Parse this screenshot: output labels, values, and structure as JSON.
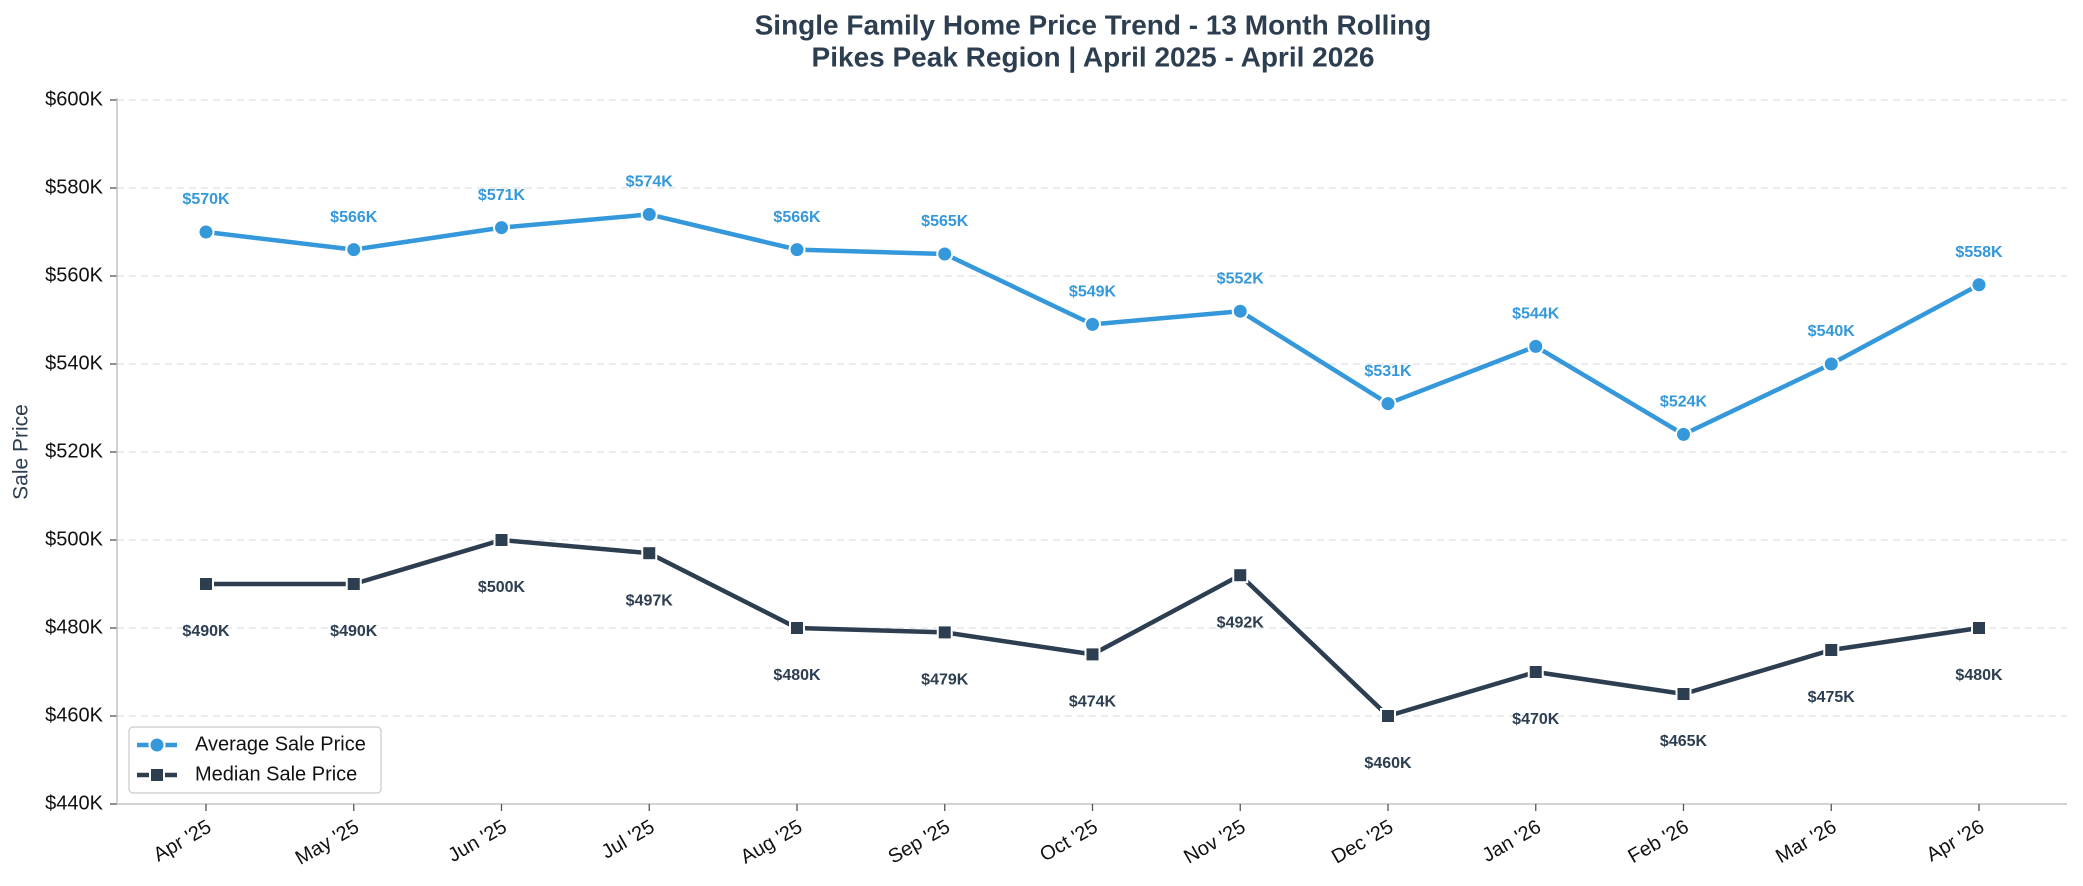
{
  "chart_data": {
    "type": "line",
    "title": "Single Family Home Price Trend - 13 Month Rolling",
    "subtitle": "Pikes Peak Region | April 2025 - April 2026",
    "y_label": "Sale Price",
    "categories": [
      "Apr '25",
      "May '25",
      "Jun '25",
      "Jul '25",
      "Aug '25",
      "Sep '25",
      "Oct '25",
      "Nov '25",
      "Dec '25",
      "Jan '26",
      "Feb '26",
      "Mar '26",
      "Apr '26"
    ],
    "series": [
      {
        "name": "Average Sale Price",
        "color": "#3498db",
        "marker": "circle",
        "label_position": "above",
        "values": [
          570000,
          566000,
          571000,
          574000,
          566000,
          565000,
          549000,
          552000,
          531000,
          544000,
          524000,
          540000,
          558000
        ],
        "value_labels": [
          "$570K",
          "$566K",
          "$571K",
          "$574K",
          "$566K",
          "$565K",
          "$549K",
          "$552K",
          "$531K",
          "$544K",
          "$524K",
          "$540K",
          "$558K"
        ]
      },
      {
        "name": "Median Sale Price",
        "color": "#2c3e50",
        "marker": "square",
        "label_position": "below",
        "values": [
          490000,
          490000,
          500000,
          497000,
          480000,
          479000,
          474000,
          492000,
          460000,
          470000,
          465000,
          475000,
          480000
        ],
        "value_labels": [
          "$490K",
          "$490K",
          "$500K",
          "$497K",
          "$480K",
          "$479K",
          "$474K",
          "$492K",
          "$460K",
          "$470K",
          "$465K",
          "$475K",
          "$480K"
        ]
      }
    ],
    "ylim": [
      440000,
      600000
    ],
    "yticks": [
      {
        "value": 440000,
        "label": "$440K"
      },
      {
        "value": 460000,
        "label": "$460K"
      },
      {
        "value": 480000,
        "label": "$480K"
      },
      {
        "value": 500000,
        "label": "$500K"
      },
      {
        "value": 520000,
        "label": "$520K"
      },
      {
        "value": 540000,
        "label": "$540K"
      },
      {
        "value": 560000,
        "label": "$560K"
      },
      {
        "value": 580000,
        "label": "$580K"
      },
      {
        "value": 600000,
        "label": "$600K"
      }
    ],
    "grid": true,
    "legend": "lower left"
  }
}
